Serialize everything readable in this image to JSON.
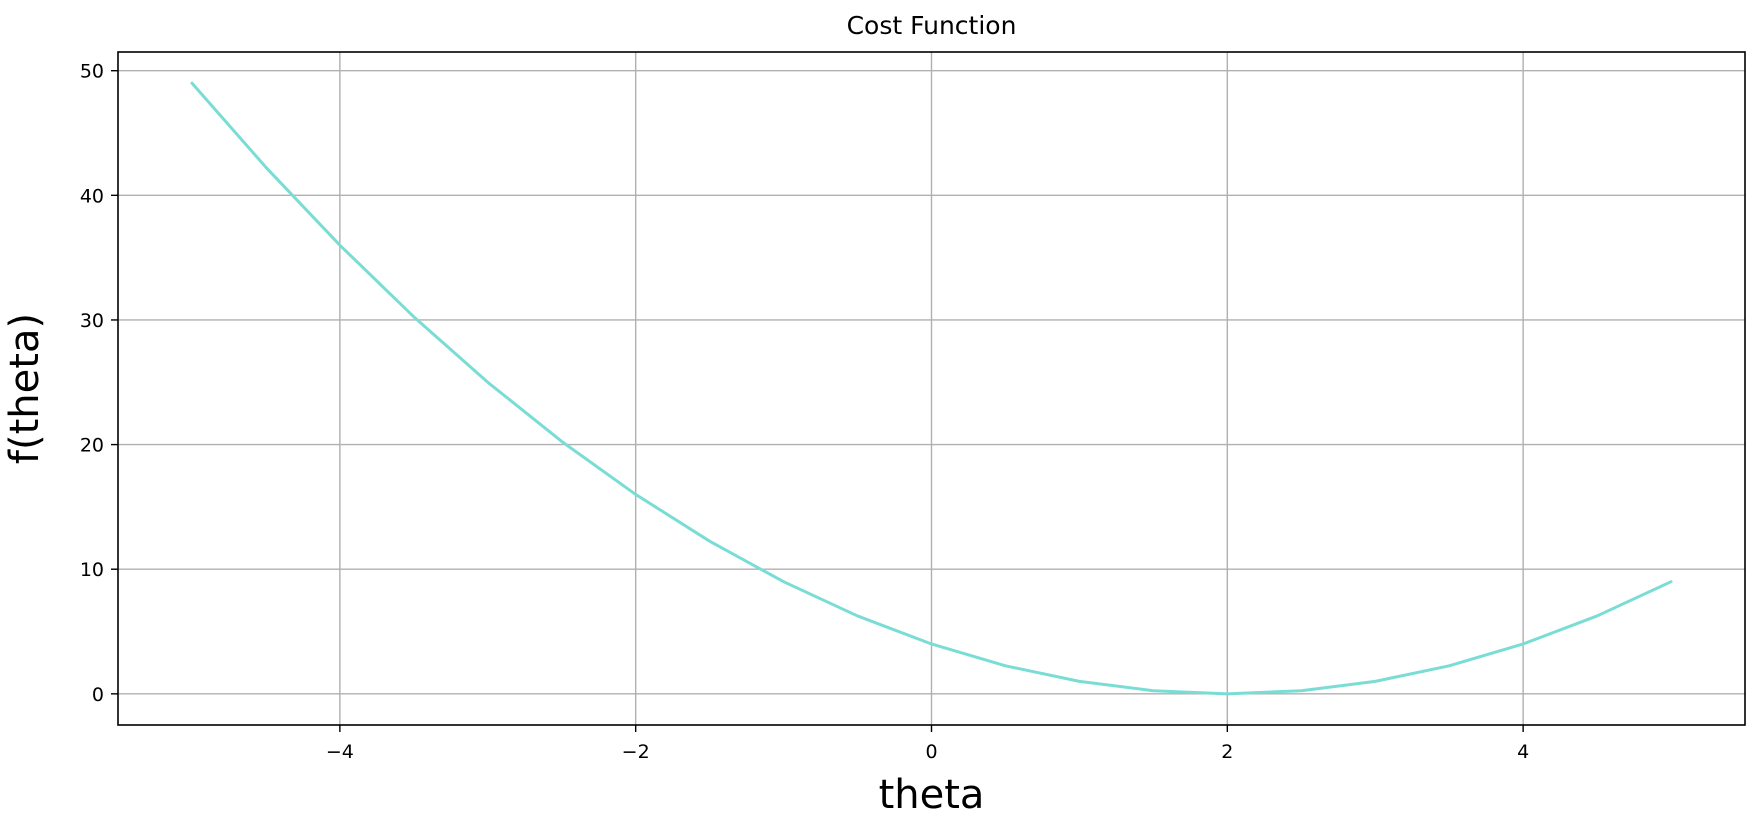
{
  "chart_data": {
    "type": "line",
    "title": "Cost Function",
    "xlabel": "theta",
    "ylabel": "f(theta)",
    "xlim": [
      -5.5,
      5.5
    ],
    "ylim": [
      -2.5,
      51.5
    ],
    "xticks": [
      -4,
      -2,
      0,
      2,
      4
    ],
    "xtick_labels": [
      "−4",
      "−2",
      "0",
      "2",
      "4"
    ],
    "yticks": [
      0,
      10,
      20,
      30,
      40,
      50
    ],
    "ytick_labels": [
      "0",
      "10",
      "20",
      "30",
      "40",
      "50"
    ],
    "grid": true,
    "series": [
      {
        "color": "#7addd5",
        "x": [
          -5,
          -4.5,
          -4,
          -3.5,
          -3,
          -2.5,
          -2,
          -1.5,
          -1,
          -0.5,
          0,
          0.5,
          1,
          1.5,
          2,
          2.5,
          3,
          3.5,
          4,
          4.5,
          5
        ],
        "y": [
          49,
          42.25,
          36,
          30.25,
          25,
          20.25,
          16,
          12.25,
          9,
          6.25,
          4,
          2.25,
          1,
          0.25,
          0,
          0.25,
          1,
          2.25,
          4,
          6.25,
          9
        ]
      }
    ]
  }
}
